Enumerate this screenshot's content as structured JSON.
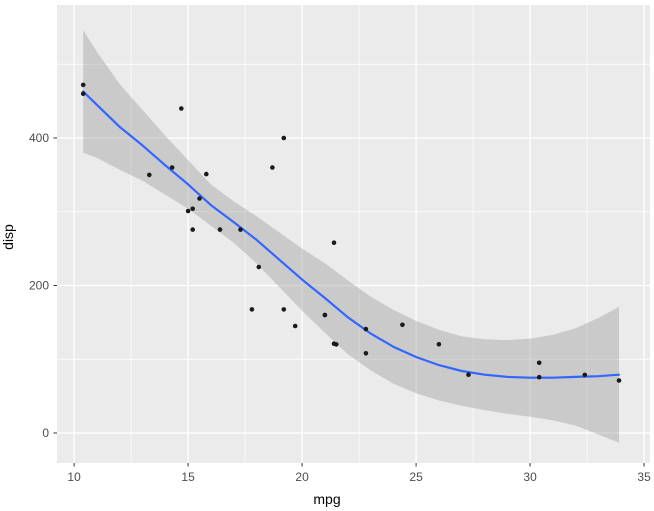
{
  "chart_data": {
    "type": "scatter",
    "title": "",
    "xlabel": "mpg",
    "ylabel": "disp",
    "x_ticks": [
      10,
      15,
      20,
      25,
      30,
      35
    ],
    "x_minor_ticks": [
      12.5,
      17.5,
      22.5,
      27.5,
      32.5
    ],
    "y_ticks": [
      0,
      200,
      400
    ],
    "y_minor_ticks": [
      100,
      300,
      500
    ],
    "xlim": [
      9.25,
      35.26
    ],
    "ylim": [
      -40.7,
      580.3
    ],
    "grid": "major-and-minor, white on grey panel",
    "legend_position": "none",
    "colors": {
      "panel_background": "#EBEBEB",
      "gridline": "#FFFFFF",
      "point": "#1a1a1a",
      "smooth_line": "#3366FF",
      "ribbon": "#999999",
      "ribbon_opacity": 0.4,
      "tick_text": "#4d4d4d",
      "tick_mark": "#333333"
    },
    "points": [
      [
        21.0,
        160
      ],
      [
        21.0,
        160
      ],
      [
        22.8,
        108
      ],
      [
        21.4,
        258
      ],
      [
        18.7,
        360
      ],
      [
        18.1,
        225
      ],
      [
        14.3,
        360
      ],
      [
        24.4,
        146.7
      ],
      [
        22.8,
        140.8
      ],
      [
        19.2,
        167.6
      ],
      [
        17.8,
        167.6
      ],
      [
        16.4,
        275.8
      ],
      [
        17.3,
        275.8
      ],
      [
        15.2,
        275.8
      ],
      [
        10.4,
        472
      ],
      [
        10.4,
        460
      ],
      [
        14.7,
        440
      ],
      [
        32.4,
        78.7
      ],
      [
        30.4,
        75.7
      ],
      [
        33.9,
        71.1
      ],
      [
        21.5,
        120.1
      ],
      [
        15.5,
        318
      ],
      [
        15.2,
        304
      ],
      [
        13.3,
        350
      ],
      [
        19.2,
        400
      ],
      [
        27.3,
        79
      ],
      [
        26.0,
        120.3
      ],
      [
        30.4,
        95.1
      ],
      [
        15.8,
        351
      ],
      [
        19.7,
        145
      ],
      [
        15.0,
        301
      ],
      [
        21.4,
        121
      ]
    ],
    "smooth": {
      "x": [
        10.4,
        11,
        12,
        13,
        14,
        15,
        16,
        17,
        18,
        19,
        20,
        21,
        22,
        23,
        24,
        25,
        26,
        27,
        28,
        29,
        30,
        31,
        32,
        33,
        33.9
      ],
      "y": [
        463,
        445,
        415,
        390,
        363,
        337,
        309,
        286,
        262,
        235,
        208,
        183,
        157,
        135,
        117,
        103,
        92,
        84,
        79,
        76,
        75,
        75,
        76,
        77,
        79
      ]
    },
    "ribbon": {
      "x": [
        10.4,
        11,
        12,
        13,
        14,
        15,
        16,
        17,
        18,
        19,
        20,
        21,
        22,
        23,
        24,
        25,
        26,
        27,
        28,
        29,
        30,
        31,
        32,
        33,
        33.9
      ],
      "upper": [
        546,
        517,
        473,
        438,
        403,
        370,
        337,
        314,
        294,
        272,
        250,
        230,
        207,
        185,
        167,
        152,
        140,
        131,
        127,
        126,
        128,
        133,
        142,
        156,
        171
      ],
      "lower": [
        380,
        373,
        357,
        342,
        323,
        304,
        281,
        258,
        230,
        198,
        166,
        136,
        107,
        85,
        67,
        54,
        44,
        37,
        31,
        26,
        22,
        17,
        10,
        -2,
        -13
      ]
    }
  }
}
